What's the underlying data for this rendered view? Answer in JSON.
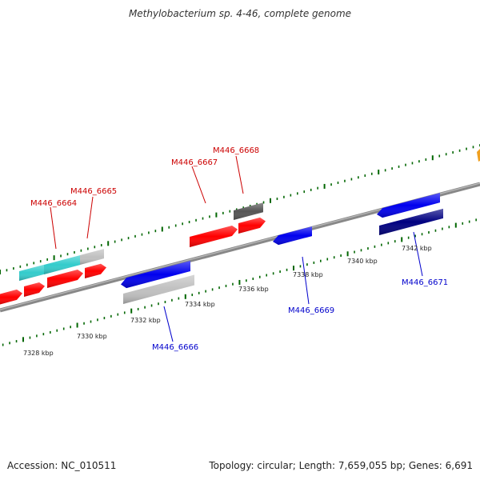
{
  "header": {
    "title": "Methylobacterium sp. 4-46, complete genome"
  },
  "footer": {
    "accession": "Accession: NC_010511",
    "summary": "Topology: circular; Length: 7,659,055 bp; Genes: 6,691"
  },
  "colors": {
    "forward_gene": "#ff0000",
    "reverse_gene": "#0000ee",
    "hypothetical_cyan": "#33cccc",
    "hypothetical_grey": "#c0c0c0",
    "dark_grey": "#555555",
    "navy": "#000080",
    "tick_green": "#006600",
    "backbone": "#888888",
    "label_red": "#cc0000",
    "label_blue": "#0000cc"
  },
  "scale_labels": [
    "7328 kbp",
    "7330 kbp",
    "7332 kbp",
    "7334 kbp",
    "7336 kbp",
    "7338 kbp",
    "7340 kbp",
    "7342 kbp"
  ],
  "gene_labels": {
    "g6664": "M446_6664",
    "g6665": "M446_6665",
    "g6667": "M446_6667",
    "g6668": "M446_6668",
    "g6666": "M446_6666",
    "g6669": "M446_6669",
    "g6671": "M446_6671"
  }
}
